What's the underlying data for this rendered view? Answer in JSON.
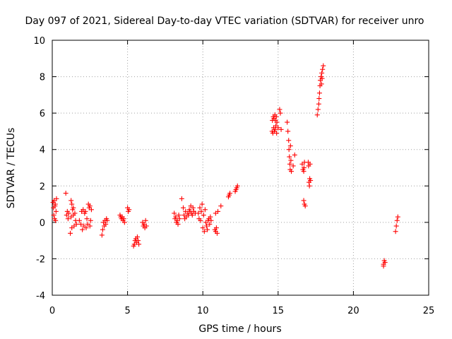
{
  "chart_data": {
    "type": "scatter",
    "title": "Day 097 of 2021, Sidereal Day-to-day VTEC variation (SDTVAR) for receiver unro",
    "xlabel": "GPS time / hours",
    "ylabel": "SDTVAR / TECUs",
    "xlim": [
      0,
      25
    ],
    "ylim": [
      -4,
      10
    ],
    "xticks": [
      0,
      5,
      10,
      15,
      20,
      25
    ],
    "yticks": [
      -4,
      -2,
      0,
      2,
      4,
      6,
      8,
      10
    ],
    "xtick_labels": [
      "0",
      "5",
      "10",
      "15",
      "20",
      "25"
    ],
    "ytick_labels": [
      "-4",
      "-2",
      "0",
      "2",
      "4",
      "6",
      "8",
      "10"
    ],
    "grid": true,
    "marker": "+",
    "series": [
      {
        "name": "SDTVAR",
        "color": "#ff0000",
        "points": [
          [
            0.05,
            1.1
          ],
          [
            0.08,
            0.8
          ],
          [
            0.1,
            0.4
          ],
          [
            0.12,
            1.2
          ],
          [
            0.15,
            0.2
          ],
          [
            0.18,
            0.9
          ],
          [
            0.2,
            1.0
          ],
          [
            0.22,
            0.1
          ],
          [
            0.25,
            0.6
          ],
          [
            0.28,
            1.3
          ],
          [
            0.9,
            1.6
          ],
          [
            0.95,
            0.4
          ],
          [
            1.0,
            0.6
          ],
          [
            1.05,
            0.2
          ],
          [
            1.1,
            0.5
          ],
          [
            1.2,
            -0.6
          ],
          [
            1.25,
            0.3
          ],
          [
            1.3,
            1.0
          ],
          [
            1.3,
            -0.3
          ],
          [
            1.35,
            0.7
          ],
          [
            1.4,
            0.4
          ],
          [
            1.45,
            -0.2
          ],
          [
            1.5,
            0.5
          ],
          [
            1.55,
            0.1
          ],
          [
            1.6,
            -0.1
          ],
          [
            1.25,
            1.2
          ],
          [
            1.4,
            0.8
          ],
          [
            1.8,
            0.1
          ],
          [
            1.9,
            -0.1
          ],
          [
            1.95,
            0.6
          ],
          [
            2.0,
            -0.4
          ],
          [
            2.05,
            0.7
          ],
          [
            2.1,
            -0.2
          ],
          [
            2.15,
            0.5
          ],
          [
            2.2,
            0.6
          ],
          [
            2.25,
            -0.3
          ],
          [
            2.3,
            0.2
          ],
          [
            2.4,
            1.0
          ],
          [
            2.45,
            0.8
          ],
          [
            2.5,
            0.9
          ],
          [
            2.55,
            0.1
          ],
          [
            2.6,
            0.7
          ],
          [
            2.5,
            -0.2
          ],
          [
            2.35,
            -0.1
          ],
          [
            3.3,
            -0.7
          ],
          [
            3.35,
            -0.4
          ],
          [
            3.4,
            0.0
          ],
          [
            3.45,
            -0.2
          ],
          [
            3.5,
            0.1
          ],
          [
            3.55,
            -0.1
          ],
          [
            3.6,
            0.2
          ],
          [
            3.65,
            0.1
          ],
          [
            4.5,
            0.4
          ],
          [
            4.55,
            0.3
          ],
          [
            4.6,
            0.2
          ],
          [
            4.65,
            0.3
          ],
          [
            4.7,
            0.1
          ],
          [
            4.75,
            0.2
          ],
          [
            4.8,
            0.0
          ],
          [
            5.0,
            0.8
          ],
          [
            5.05,
            0.6
          ],
          [
            5.1,
            0.7
          ],
          [
            5.4,
            -1.3
          ],
          [
            5.45,
            -1.2
          ],
          [
            5.5,
            -1.0
          ],
          [
            5.55,
            -0.9
          ],
          [
            5.6,
            -1.1
          ],
          [
            5.65,
            -0.8
          ],
          [
            5.7,
            -1.0
          ],
          [
            5.75,
            -1.2
          ],
          [
            6.0,
            0.0
          ],
          [
            6.05,
            -0.2
          ],
          [
            6.1,
            -0.1
          ],
          [
            6.15,
            -0.3
          ],
          [
            6.2,
            0.1
          ],
          [
            6.25,
            -0.2
          ],
          [
            8.1,
            0.5
          ],
          [
            8.15,
            0.2
          ],
          [
            8.2,
            0.3
          ],
          [
            8.25,
            0.0
          ],
          [
            8.3,
            0.1
          ],
          [
            8.35,
            -0.1
          ],
          [
            8.4,
            0.4
          ],
          [
            8.45,
            0.2
          ],
          [
            8.6,
            1.3
          ],
          [
            8.7,
            0.8
          ],
          [
            8.75,
            0.4
          ],
          [
            8.8,
            0.2
          ],
          [
            8.85,
            0.6
          ],
          [
            8.9,
            0.3
          ],
          [
            9.0,
            0.5
          ],
          [
            9.05,
            0.4
          ],
          [
            9.1,
            0.7
          ],
          [
            9.15,
            0.6
          ],
          [
            9.2,
            0.9
          ],
          [
            9.25,
            0.5
          ],
          [
            9.3,
            0.4
          ],
          [
            9.35,
            0.8
          ],
          [
            9.4,
            0.6
          ],
          [
            9.5,
            0.5
          ],
          [
            9.7,
            0.5
          ],
          [
            9.75,
            0.2
          ],
          [
            9.8,
            0.8
          ],
          [
            9.85,
            0.1
          ],
          [
            9.9,
            0.6
          ],
          [
            9.95,
            1.0
          ],
          [
            10.0,
            -0.3
          ],
          [
            10.05,
            0.4
          ],
          [
            10.1,
            -0.5
          ],
          [
            10.15,
            0.7
          ],
          [
            10.2,
            0.0
          ],
          [
            10.25,
            -0.2
          ],
          [
            10.3,
            -0.4
          ],
          [
            10.35,
            0.1
          ],
          [
            10.4,
            0.2
          ],
          [
            10.45,
            -0.1
          ],
          [
            10.5,
            0.3
          ],
          [
            10.55,
            0.1
          ],
          [
            10.8,
            -0.4
          ],
          [
            10.85,
            -0.5
          ],
          [
            10.9,
            -0.3
          ],
          [
            10.95,
            -0.6
          ],
          [
            10.85,
            0.5
          ],
          [
            11.0,
            0.6
          ],
          [
            11.2,
            0.9
          ],
          [
            11.7,
            1.4
          ],
          [
            11.75,
            1.5
          ],
          [
            11.8,
            1.6
          ],
          [
            12.15,
            1.7
          ],
          [
            12.2,
            1.8
          ],
          [
            12.25,
            1.9
          ],
          [
            12.3,
            2.0
          ],
          [
            14.6,
            5.0
          ],
          [
            14.62,
            5.6
          ],
          [
            14.65,
            4.9
          ],
          [
            14.68,
            5.8
          ],
          [
            14.7,
            5.2
          ],
          [
            14.72,
            5.7
          ],
          [
            14.75,
            5.0
          ],
          [
            14.78,
            5.9
          ],
          [
            14.8,
            5.1
          ],
          [
            14.82,
            5.6
          ],
          [
            14.85,
            5.3
          ],
          [
            14.88,
            5.8
          ],
          [
            14.9,
            4.9
          ],
          [
            14.92,
            5.5
          ],
          [
            15.0,
            5.2
          ],
          [
            15.1,
            6.2
          ],
          [
            15.15,
            6.0
          ],
          [
            15.2,
            5.1
          ],
          [
            15.6,
            5.5
          ],
          [
            15.65,
            5.0
          ],
          [
            15.7,
            4.5
          ],
          [
            15.72,
            4.0
          ],
          [
            15.75,
            3.6
          ],
          [
            15.78,
            3.2
          ],
          [
            15.8,
            2.9
          ],
          [
            15.82,
            4.2
          ],
          [
            15.85,
            3.4
          ],
          [
            15.88,
            2.8
          ],
          [
            16.1,
            3.7
          ],
          [
            16.0,
            3.1
          ],
          [
            16.6,
            3.2
          ],
          [
            16.65,
            2.9
          ],
          [
            16.7,
            2.8
          ],
          [
            16.72,
            3.0
          ],
          [
            16.75,
            3.3
          ],
          [
            16.7,
            1.2
          ],
          [
            16.75,
            1.0
          ],
          [
            16.8,
            0.9
          ],
          [
            17.0,
            3.3
          ],
          [
            17.02,
            3.1
          ],
          [
            17.05,
            2.2
          ],
          [
            17.08,
            2.0
          ],
          [
            17.1,
            2.4
          ],
          [
            17.12,
            3.2
          ],
          [
            17.15,
            2.3
          ],
          [
            17.6,
            5.9
          ],
          [
            17.65,
            6.2
          ],
          [
            17.7,
            6.5
          ],
          [
            17.72,
            6.8
          ],
          [
            17.75,
            7.1
          ],
          [
            17.78,
            7.5
          ],
          [
            17.8,
            7.8
          ],
          [
            17.85,
            8.0
          ],
          [
            17.9,
            8.2
          ],
          [
            17.95,
            8.4
          ],
          [
            18.0,
            8.6
          ],
          [
            17.88,
            7.6
          ],
          [
            17.92,
            7.9
          ],
          [
            22.0,
            -2.3
          ],
          [
            22.05,
            -2.1
          ],
          [
            22.1,
            -2.2
          ],
          [
            22.0,
            -2.4
          ],
          [
            22.8,
            -0.5
          ],
          [
            22.85,
            -0.2
          ],
          [
            22.9,
            0.1
          ],
          [
            22.95,
            0.3
          ]
        ]
      }
    ]
  }
}
